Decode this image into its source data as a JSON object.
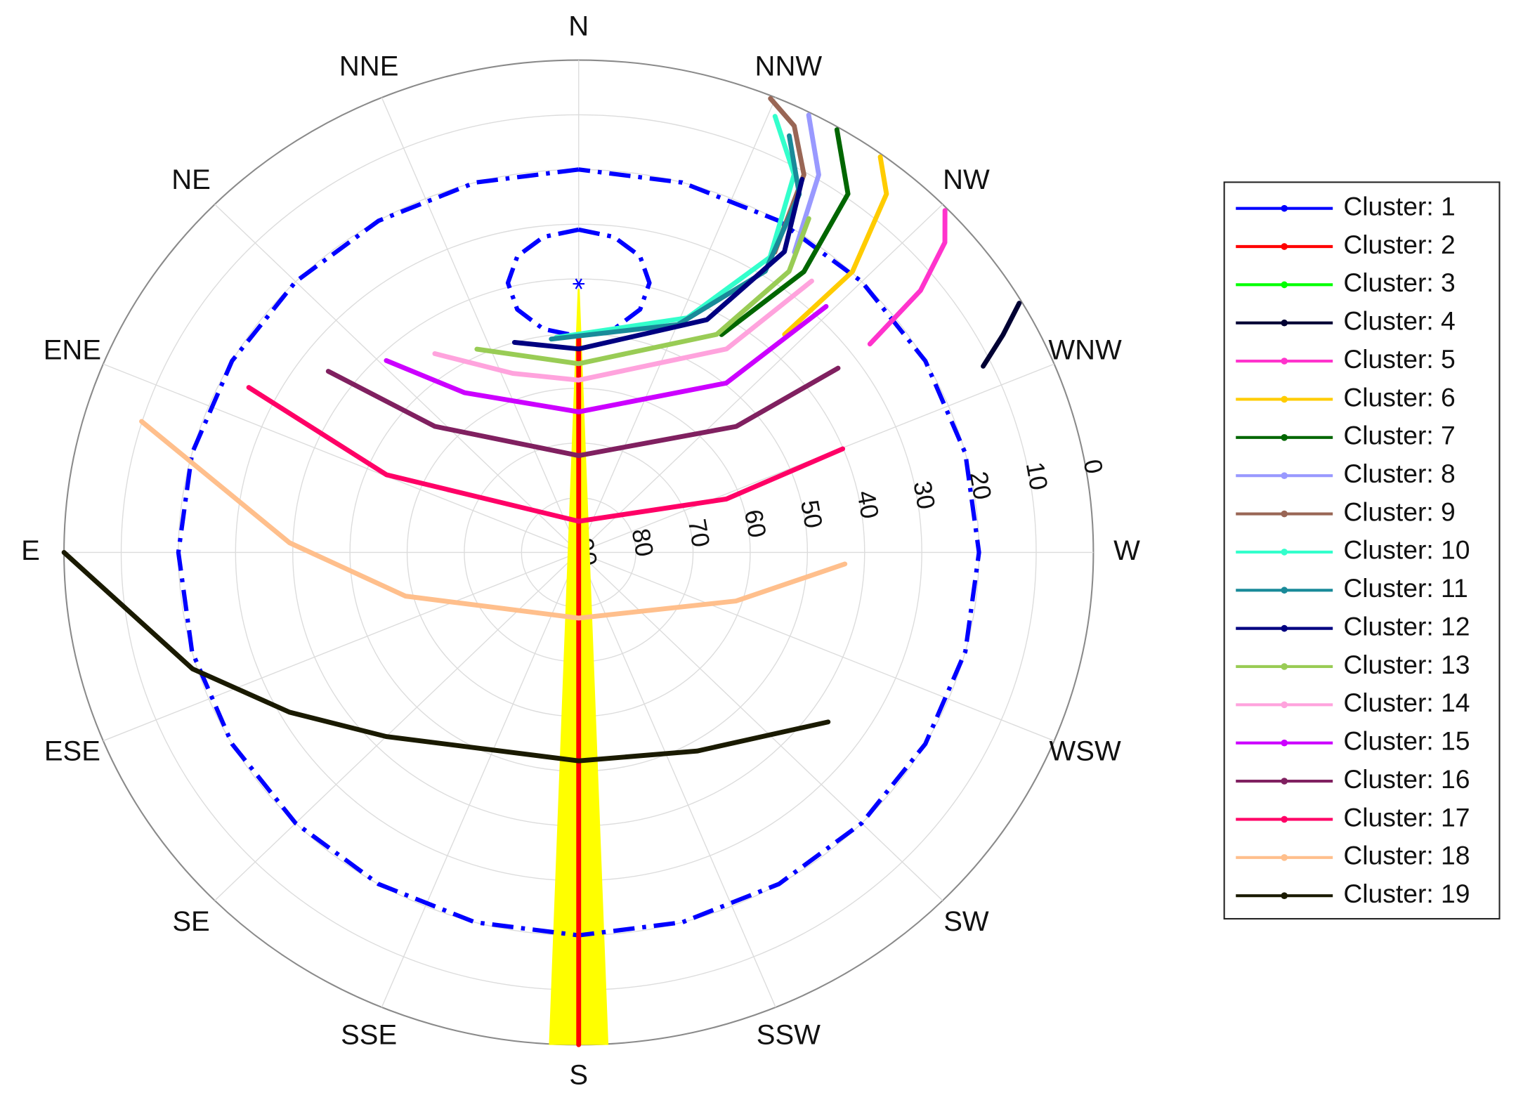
{
  "chart_data": {
    "type": "polar-line",
    "rlim": [
      90,
      0
    ],
    "rticks": [
      0,
      10,
      20,
      30,
      40,
      50,
      60,
      70,
      80,
      90
    ],
    "thetaticks": [
      {
        "value": 0,
        "label": "N"
      },
      {
        "value": 22.5,
        "label": "NNE"
      },
      {
        "value": 45,
        "label": "NE"
      },
      {
        "value": 67.5,
        "label": "ENE"
      },
      {
        "value": 90,
        "label": "E"
      },
      {
        "value": 112.5,
        "label": "ESE"
      },
      {
        "value": 135,
        "label": "SE"
      },
      {
        "value": 157.5,
        "label": "SSE"
      },
      {
        "value": 180,
        "label": "S"
      },
      {
        "value": 202.5,
        "label": "SSW"
      },
      {
        "value": 225,
        "label": "SW"
      },
      {
        "value": 247.5,
        "label": "WSW"
      },
      {
        "value": 270,
        "label": "W"
      },
      {
        "value": 292.5,
        "label": "WNW"
      },
      {
        "value": 315,
        "label": "NW"
      },
      {
        "value": 337.5,
        "label": "NNW"
      }
    ],
    "grid": true,
    "legend": "right",
    "patches": [
      {
        "color": "#ffff00",
        "azimuth": [
          0,
          176.8,
          183.2
        ],
        "elevation": [
          41.8,
          0,
          0
        ]
      }
    ],
    "series": [
      {
        "name": "Cluster: 1",
        "color": "#0000ff",
        "dash": "dashdot",
        "azimuth": [
          0,
          15,
          30,
          45,
          60,
          75,
          90,
          105,
          120,
          135,
          150,
          165,
          180,
          195,
          210,
          225,
          240,
          255,
          270,
          285,
          300,
          315,
          330,
          345,
          360,
          null,
          0,
          353.9,
          348.8,
          345.9,
          346.4,
          351.4,
          0,
          8.6,
          13.6,
          14.1,
          11.2,
          6.1,
          0
        ],
        "elevation": [
          20,
          20,
          20,
          20,
          20,
          20,
          20,
          20,
          20,
          20,
          20,
          20,
          20,
          20,
          20,
          20,
          20,
          20,
          20,
          20,
          20,
          20,
          20,
          20,
          20,
          null,
          31.0,
          32.0,
          34.8,
          39.2,
          44.3,
          48.7,
          50.5,
          48.7,
          44.3,
          39.2,
          34.8,
          32.0,
          31.0
        ],
        "marker_azimuth": 0,
        "marker_elevation": 40.9
      },
      {
        "name": "Cluster: 2",
        "color": "#ff0000",
        "azimuth": [
          0,
          180
        ],
        "elevation": [
          50.1,
          0
        ]
      },
      {
        "name": "Cluster: 3",
        "color": "#00ff00",
        "azimuth": [],
        "elevation": []
      },
      {
        "name": "Cluster: 4",
        "color": "#000033",
        "azimuth": [
          295.7,
          298.2,
          300.6
        ],
        "elevation": [
          11.5,
          5.8,
          0.5
        ]
      },
      {
        "name": "Cluster: 5",
        "color": "#ff33cc",
        "azimuth": [
          306.8,
          308.7,
          311.5,
          314.3
        ],
        "elevation": [
          26.4,
          13.4,
          4.5,
          0.5
        ]
      },
      {
        "name": "Cluster: 6",
        "color": "#ffcc00",
        "azimuth": [
          317.9,
          317.0,
          320.6,
          323.9
        ],
        "elevation": [
          36.3,
          19.8,
          5.2,
          0.5
        ]
      },
      {
        "name": "Cluster: 7",
        "color": "#006600",
        "azimuth": [
          327.9,
          322.5,
          324.3,
          329.7
        ],
        "elevation": [
          43.0,
          25.3,
          9.3,
          0.5
        ]
      },
      {
        "name": "Cluster: 8",
        "color": "#9999ff",
        "azimuth": [
          325.5,
          328.7,
          333.3
        ],
        "elevation": [
          23.4,
          9.2,
          0.5
        ]
      },
      {
        "name": "Cluster: 9",
        "color": "#996655",
        "azimuth": [
          328.0,
          330.3,
          334.2,
          338.0
        ],
        "elevation": [
          25.3,
          10.5,
          3.4,
          0.5
        ]
      },
      {
        "name": "Cluster: 10",
        "color": "#33ffcc",
        "azimuth": [
          5.7,
          336.1,
          328.2,
          331.4,
          336.7
        ],
        "elevation": [
          50.5,
          43.1,
          26.5,
          11.3,
          3.2
        ]
      },
      {
        "name": "Cluster: 11",
        "color": "#198a99",
        "azimuth": [
          7.0,
          337.4,
          327.6,
          329.5,
          334.2
        ],
        "elevation": [
          50.7,
          44.9,
          29.1,
          14.0,
          5.4
        ]
      },
      {
        "name": "Cluster: 12",
        "color": "#000080",
        "azimuth": [
          16.3,
          0,
          332.2,
          326.8,
          330.2
        ],
        "elevation": [
          50.0,
          52.8,
          41.9,
          24.3,
          11.4
        ]
      },
      {
        "name": "Cluster: 13",
        "color": "#99cc55",
        "azimuth": [
          25.6,
          0,
          328.8,
          324.4,
          326.6
        ],
        "elevation": [
          48.8,
          55.5,
          43.4,
          26.8,
          16.9
        ]
      },
      {
        "name": "Cluster: 14",
        "color": "#ffa3dd",
        "azimuth": [
          34.7,
          19.4,
          0,
          325.2,
          320.6
        ],
        "elevation": [
          45.8,
          55.3,
          58.5,
          44.7,
          25.8
        ]
      },
      {
        "name": "Cluster: 15",
        "color": "#cc00ff",
        "azimuth": [
          43.8,
          34.4,
          0,
          320.2,
          316.1
        ],
        "elevation": [
          41.4,
          54.6,
          64.3,
          49.7,
          27.6
        ]
      },
      {
        "name": "Cluster: 16",
        "color": "#802060",
        "azimuth": [
          52.9,
          47.5,
          0,
          309.9,
          306.6
        ],
        "elevation": [
          35.1,
          55.9,
          72.3,
          54.1,
          33.5
        ]
      },
      {
        "name": "Cluster: 17",
        "color": "#ff0066",
        "azimuth": [
          62.4,
          67.1,
          0,
          290.7,
          292.3
        ],
        "elevation": [
          24.9,
          53.5,
          84.3,
          62.4,
          40.1
        ]
      },
      {
        "name": "Cluster: 18",
        "color": "#ffbf8c",
        "azimuth": [
          72.6,
          88.0,
          104.8,
          180,
          252.1,
          267.4
        ],
        "elevation": [
          9.9,
          39.4,
          58.7,
          78.0,
          61.1,
          43.4
        ]
      },
      {
        "name": "Cluster: 19",
        "color": "#1a1a00",
        "azimuth": [
          90,
          107.5,
          120.0,
          135.0,
          180,
          209.7,
          234.6
        ],
        "elevation": [
          0,
          19.2,
          31.6,
          42.4,
          51.9,
          48.2,
          36.5
        ]
      }
    ]
  }
}
